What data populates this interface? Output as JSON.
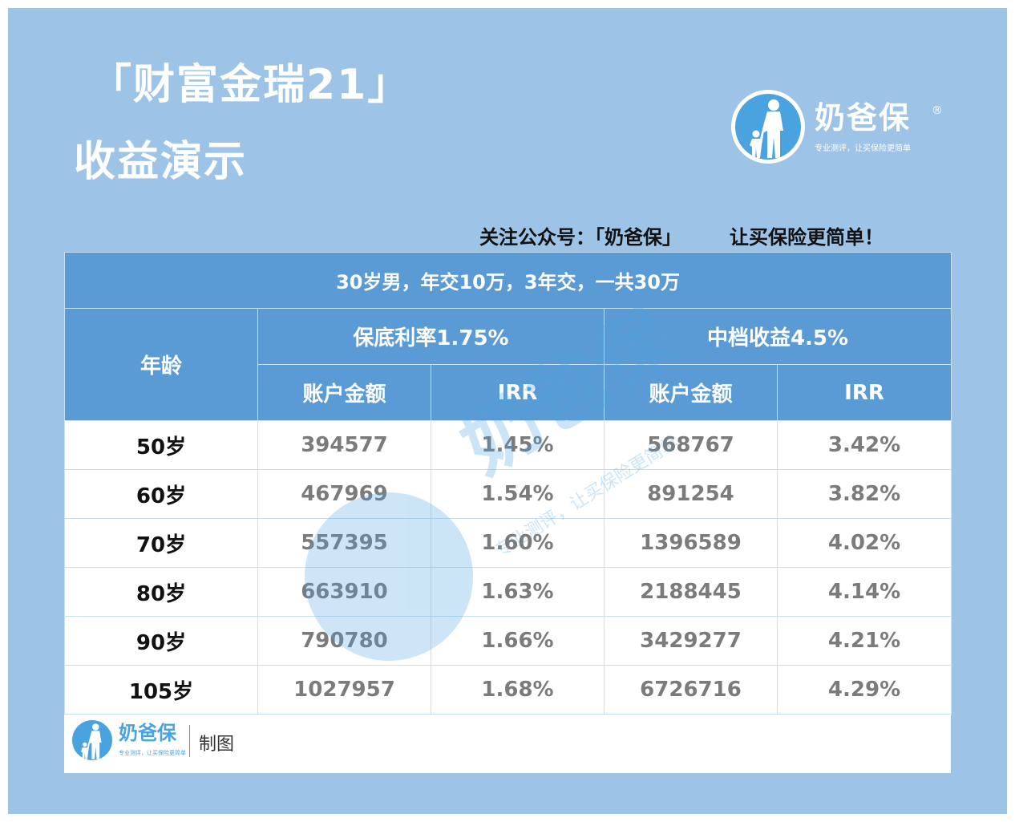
{
  "title": {
    "line1": "「财富金瑞21」",
    "line2": "收益演示"
  },
  "brand": {
    "name": "奶爸保",
    "registered": "®",
    "slogan": "专业测评，让买保险更简单",
    "icon": "parent-child-icon"
  },
  "follow": {
    "label": "关注公众号：「奶爸保」",
    "tagline": "让买保险更简单！"
  },
  "table": {
    "caption": "30岁男，年交10万，3年交，一共30万",
    "age_header": "年龄",
    "group1": "保底利率1.75%",
    "group2": "中档收益4.5%",
    "col_amount": "账户金额",
    "col_irr": "IRR",
    "rows": [
      {
        "age": "50岁",
        "a1": "394577",
        "i1": "1.45%",
        "a2": "568767",
        "i2": "3.42%"
      },
      {
        "age": "60岁",
        "a1": "467969",
        "i1": "1.54%",
        "a2": "891254",
        "i2": "3.82%"
      },
      {
        "age": "70岁",
        "a1": "557395",
        "i1": "1.60%",
        "a2": "1396589",
        "i2": "4.02%"
      },
      {
        "age": "80岁",
        "a1": "663910",
        "i1": "1.63%",
        "a2": "2188445",
        "i2": "4.14%"
      },
      {
        "age": "90岁",
        "a1": "790780",
        "i1": "1.66%",
        "a2": "3429277",
        "i2": "4.21%"
      },
      {
        "age": "105岁",
        "a1": "1027957",
        "i1": "1.68%",
        "a2": "6726716",
        "i2": "4.29%"
      }
    ]
  },
  "credit": {
    "name": "奶爸保",
    "slogan": "专业测评，让买保险更简单",
    "label": "制图"
  },
  "colors": {
    "background": "#9dc3e6",
    "header": "#5b9bd5",
    "brand": "#4aa3df"
  }
}
